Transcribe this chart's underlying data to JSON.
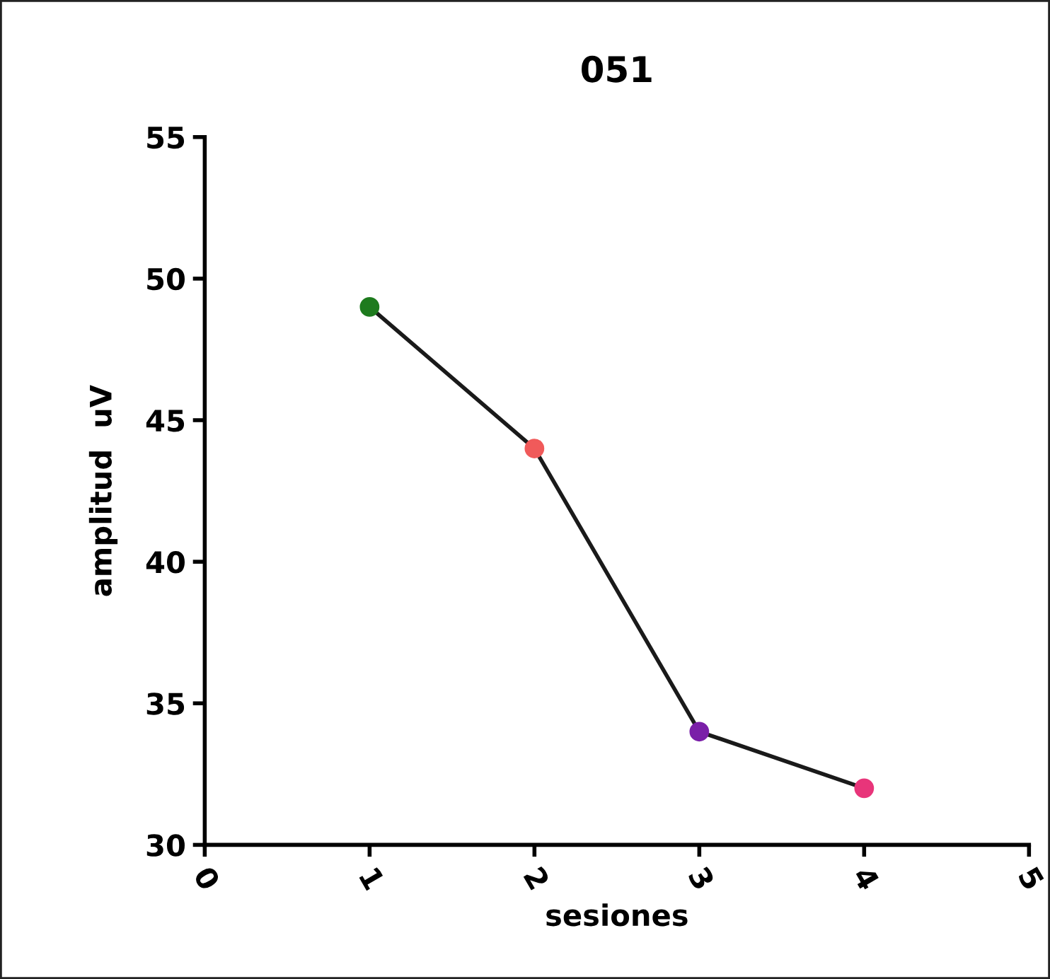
{
  "chart_data": {
    "type": "line",
    "title": "051",
    "xlabel": "sesiones",
    "ylabel": "amplitud  uV",
    "x": [
      1,
      2,
      3,
      4
    ],
    "series": [
      {
        "color": "#1a1a1a",
        "colors": [
          "#1e7b1e",
          "#f05a5a",
          "#7a1fa8",
          "#e8357a"
        ],
        "values": [
          49,
          44,
          34,
          32
        ]
      }
    ],
    "xlim": [
      0,
      5
    ],
    "xticks": [
      0,
      1,
      2,
      3,
      4,
      5
    ],
    "ylim": [
      30,
      55
    ],
    "yticks": [
      30,
      35,
      40,
      45,
      50,
      55
    ],
    "marker": "circle",
    "line_style": "solid",
    "grid": false,
    "legend": false
  }
}
